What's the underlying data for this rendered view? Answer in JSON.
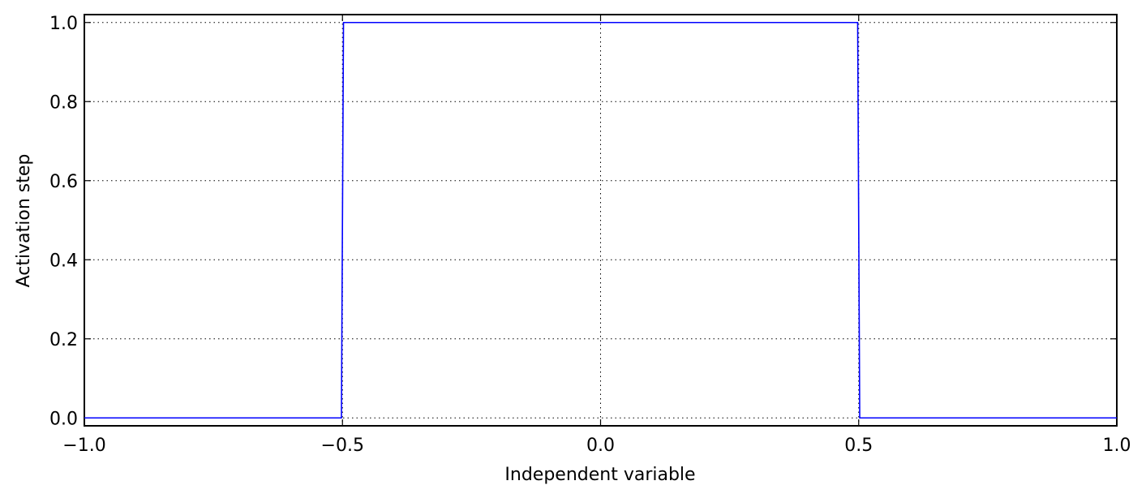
{
  "chart_data": {
    "type": "line",
    "xlabel": "Independent variable",
    "ylabel": "Activation step",
    "x": [
      -1,
      -0.502,
      -0.498,
      0.498,
      0.502,
      1
    ],
    "series": [
      {
        "color": "#0000ff",
        "values": [
          0,
          0,
          1,
          1,
          0,
          0
        ]
      }
    ],
    "xlim": [
      -1,
      1
    ],
    "xticks": [
      {
        "value": -1,
        "label": "−1.0"
      },
      {
        "value": -0.5,
        "label": "−0.5"
      },
      {
        "value": 0,
        "label": "0.0"
      },
      0.5,
      {
        "value": 1,
        "label": "1.0"
      }
    ],
    "ylim": [
      -0.02,
      1.02
    ],
    "yticks": [
      {
        "value": 0,
        "label": "0.0"
      },
      0.2,
      0.4,
      0.6,
      0.8,
      {
        "value": 1,
        "label": "1.0"
      }
    ],
    "grid": true
  }
}
